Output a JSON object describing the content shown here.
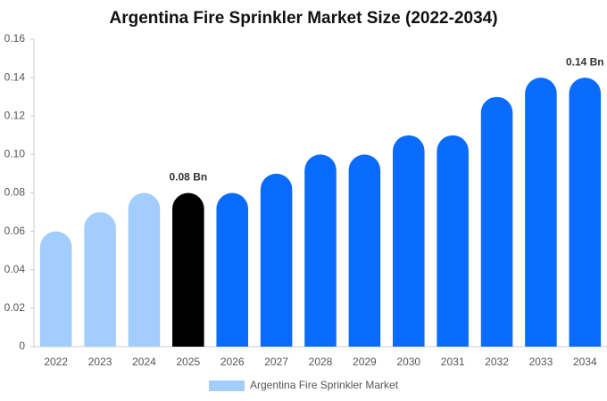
{
  "chart_data": {
    "type": "bar",
    "title": "Argentina Fire Sprinkler Market Size (2022-2034)",
    "categories": [
      "2022",
      "2023",
      "2024",
      "2025",
      "2026",
      "2027",
      "2028",
      "2029",
      "2030",
      "2031",
      "2032",
      "2033",
      "2034"
    ],
    "series": [
      {
        "name": "Argentina Fire Sprinkler Market",
        "values": [
          0.06,
          0.07,
          0.08,
          0.08,
          0.08,
          0.09,
          0.1,
          0.1,
          0.11,
          0.11,
          0.13,
          0.14,
          0.14
        ],
        "value_labels": [
          null,
          null,
          null,
          "0.08 Bn",
          null,
          null,
          null,
          null,
          null,
          null,
          null,
          null,
          "0.14 Bn"
        ],
        "colors": [
          "#a3cdfd",
          "#a3cdfd",
          "#a3cdfd",
          "#000000",
          "#0a6cff",
          "#0a6cff",
          "#0a6cff",
          "#0a6cff",
          "#0a6cff",
          "#0a6cff",
          "#0a6cff",
          "#0a6cff",
          "#0a6cff"
        ]
      }
    ],
    "ylim": [
      0,
      0.16
    ],
    "yticks": [
      0,
      0.02,
      0.04,
      0.06,
      0.08,
      {
        "value": 0.1,
        "label": "0.10"
      },
      0.12,
      0.14,
      0.16
    ],
    "grid": false
  }
}
